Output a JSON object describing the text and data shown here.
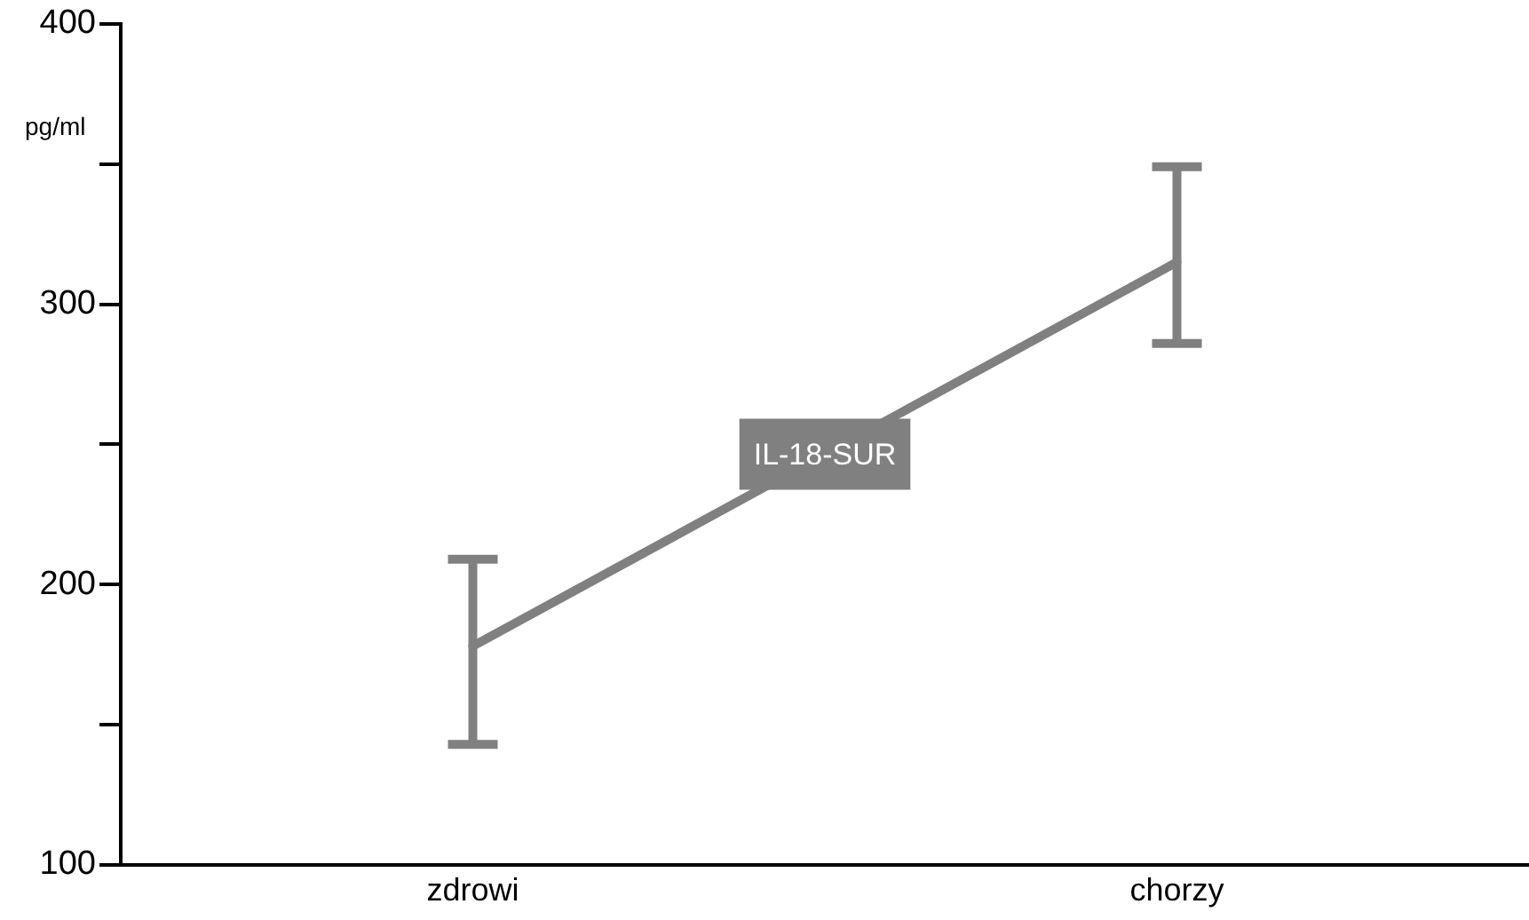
{
  "chart_data": {
    "type": "line",
    "ylabel": "pg/ml",
    "categories": [
      "zdrowi",
      "chorzy"
    ],
    "series": [
      {
        "name": "IL-18-SUR",
        "color": "#808080",
        "values": [
          178,
          315
        ],
        "errors": [
          [
            143,
            209
          ],
          [
            286,
            349
          ]
        ]
      }
    ],
    "ylim": [
      100,
      400
    ],
    "yticks": [
      100,
      {
        "value": 150,
        "label": null
      },
      200,
      {
        "value": 250,
        "label": null
      },
      300,
      {
        "value": 350,
        "label": null
      },
      400
    ],
    "grid": false,
    "legend": false,
    "marker": "none"
  }
}
